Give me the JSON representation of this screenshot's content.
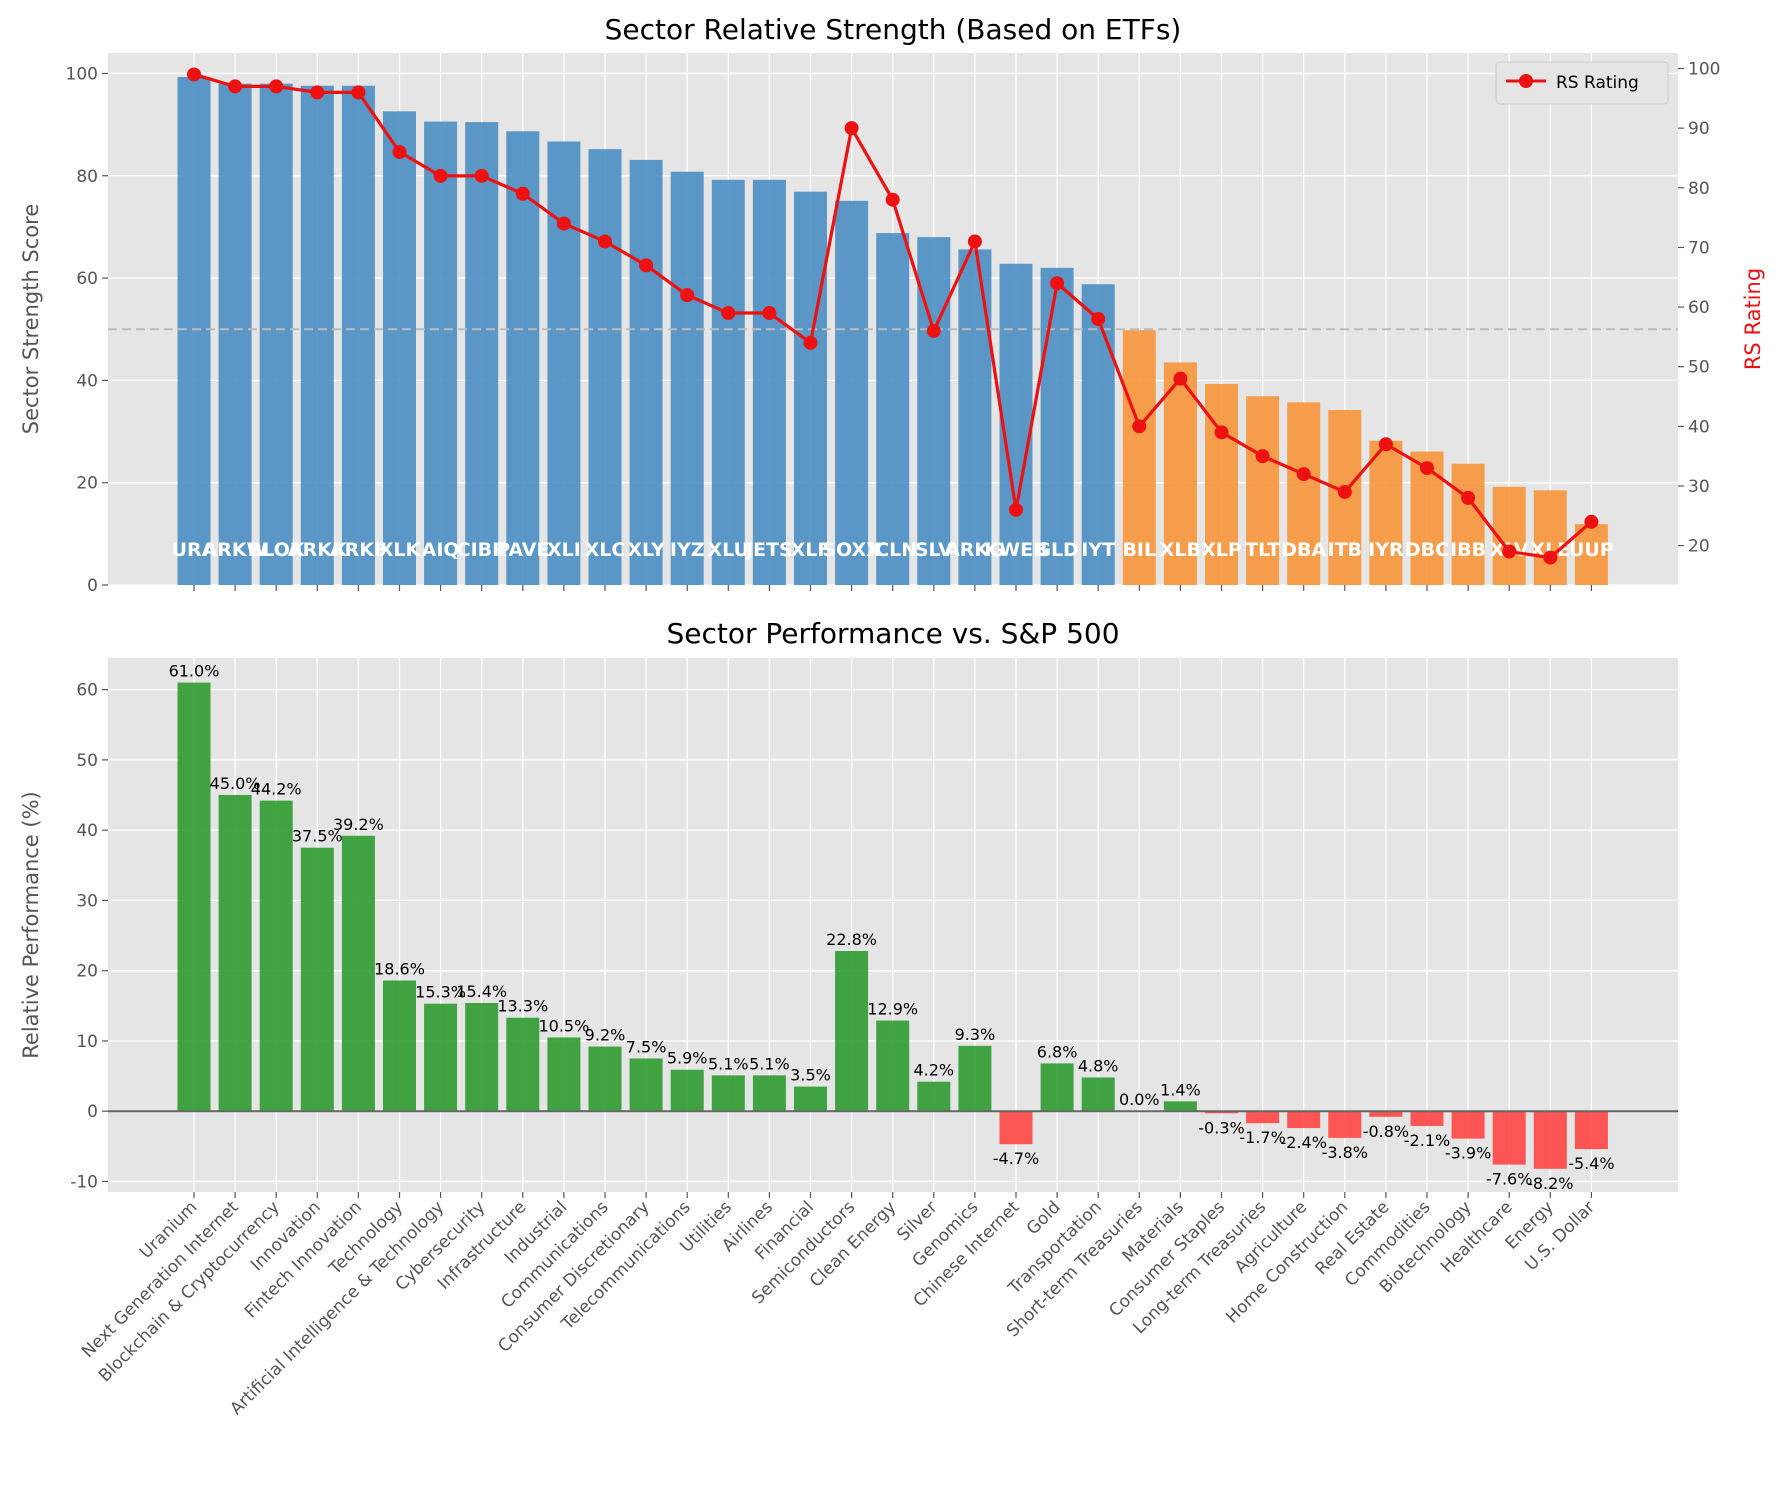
{
  "chart_data": [
    {
      "type": "bar",
      "title": "Sector Relative Strength (Based on ETFs)",
      "ylabel": "Sector Strength Score",
      "ylabel_right": "RS Rating",
      "ylim": [
        0,
        104
      ],
      "ylim_right": [
        13.4,
        102.6
      ],
      "yticks": [
        0,
        20,
        40,
        60,
        80,
        100
      ],
      "yticks_right": [
        20,
        30,
        40,
        50,
        60,
        70,
        80,
        90,
        100
      ],
      "threshold_line": 50,
      "grid": true,
      "legend_position": "top-right",
      "tickers": [
        "URA",
        "ARKW",
        "BLOK",
        "ARKK",
        "ARKF",
        "XLK",
        "AIQ",
        "CIBR",
        "PAVE",
        "XLI",
        "XLC",
        "XLY",
        "IYZ",
        "XLU",
        "JETS",
        "XLF",
        "SOXX",
        "ICLN",
        "SLV",
        "ARKG",
        "KWEB",
        "GLD",
        "IYT",
        "BIL",
        "XLB",
        "XLP",
        "TLT",
        "DBA",
        "ITB",
        "IYR",
        "DBC",
        "IBB",
        "XLV",
        "XLE",
        "UUP"
      ],
      "values": [
        99.3,
        98.0,
        98.0,
        97.6,
        97.6,
        92.6,
        90.6,
        90.5,
        88.7,
        86.7,
        85.2,
        83.1,
        80.8,
        79.2,
        79.2,
        76.9,
        75.1,
        68.8,
        68.0,
        65.6,
        62.8,
        62.0,
        58.8,
        49.8,
        43.5,
        39.3,
        36.9,
        35.7,
        34.2,
        28.2,
        26.1,
        23.7,
        19.2,
        18.5,
        11.9
      ],
      "series": [
        {
          "name": "RS Rating",
          "values": [
            99,
            97,
            97,
            96,
            96,
            86,
            82,
            82,
            79,
            74,
            71,
            67,
            62,
            59,
            59,
            54,
            90,
            78,
            56,
            71,
            26,
            64,
            58,
            40,
            48,
            39,
            35,
            32,
            29,
            37,
            33,
            28,
            19,
            18,
            24
          ]
        }
      ],
      "colors": {
        "strong": "#4a8ec2",
        "weak": "#f7953a",
        "rs_line": "#ee1111",
        "threshold": "#bbbbbb"
      }
    },
    {
      "type": "bar",
      "title": "Sector Performance vs. S&P 500",
      "ylabel": "Relative Performance (%)",
      "ylim": [
        -11.5,
        64.5
      ],
      "yticks": [
        -10,
        0,
        10,
        20,
        30,
        40,
        50,
        60
      ],
      "grid": true,
      "categories": [
        "Uranium",
        "Next Generation Internet",
        "Blockchain & Cryptocurrency",
        "Innovation",
        "Fintech Innovation",
        "Technology",
        "Artificial Intelligence & Technology",
        "Cybersecurity",
        "Infrastructure",
        "Industrial",
        "Communications",
        "Consumer Discretionary",
        "Telecommunications",
        "Utilities",
        "Airlines",
        "Financial",
        "Semiconductors",
        "Clean Energy",
        "Silver",
        "Genomics",
        "Chinese Internet",
        "Gold",
        "Transportation",
        "Short-term Treasuries",
        "Materials",
        "Consumer Staples",
        "Long-term Treasuries",
        "Agriculture",
        "Home Construction",
        "Real Estate",
        "Commodities",
        "Biotechnology",
        "Healthcare",
        "Energy",
        "U.S. Dollar"
      ],
      "values": [
        61.0,
        45.0,
        44.2,
        37.5,
        39.2,
        18.6,
        15.3,
        15.4,
        13.3,
        10.5,
        9.2,
        7.5,
        5.9,
        5.1,
        5.1,
        3.5,
        22.8,
        12.9,
        4.2,
        9.3,
        -4.7,
        6.8,
        4.8,
        0.0,
        1.4,
        -0.3,
        -1.7,
        -2.4,
        -3.8,
        -0.8,
        -2.1,
        -3.9,
        -7.6,
        -8.2,
        -5.4
      ],
      "value_labels": [
        "61.0%",
        "45.0%",
        "44.2%",
        "37.5%",
        "39.2%",
        "18.6%",
        "15.3%",
        "15.4%",
        "13.3%",
        "10.5%",
        "9.2%",
        "7.5%",
        "5.9%",
        "5.1%",
        "5.1%",
        "3.5%",
        "22.8%",
        "12.9%",
        "4.2%",
        "9.3%",
        "-4.7%",
        "6.8%",
        "4.8%",
        "0.0%",
        "1.4%",
        "-0.3%",
        "-1.7%",
        "-2.4%",
        "-3.8%",
        "-0.8%",
        "-2.1%",
        "-3.9%",
        "-7.6%",
        "-8.2%",
        "-5.4%"
      ],
      "colors": {
        "positive": "#2e9a2e",
        "negative": "#ff4444",
        "zero_line": "#666666"
      }
    }
  ]
}
